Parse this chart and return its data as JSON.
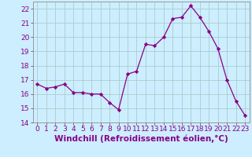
{
  "x": [
    0,
    1,
    2,
    3,
    4,
    5,
    6,
    7,
    8,
    9,
    10,
    11,
    12,
    13,
    14,
    15,
    16,
    17,
    18,
    19,
    20,
    21,
    22,
    23
  ],
  "y": [
    16.7,
    16.4,
    16.5,
    16.7,
    16.1,
    16.1,
    16.0,
    16.0,
    15.4,
    14.9,
    17.4,
    17.6,
    19.5,
    19.4,
    20.0,
    21.3,
    21.4,
    22.2,
    21.4,
    20.4,
    19.2,
    17.0,
    15.5,
    14.5
  ],
  "line_color": "#880088",
  "marker": "D",
  "marker_size": 2.2,
  "background_color": "#cceeff",
  "grid_color": "#aacccc",
  "xlabel": "Windchill (Refroidissement éolien,°C)",
  "xlim": [
    -0.5,
    23.5
  ],
  "ylim": [
    14,
    22.5
  ],
  "yticks": [
    14,
    15,
    16,
    17,
    18,
    19,
    20,
    21,
    22
  ],
  "xticks": [
    0,
    1,
    2,
    3,
    4,
    5,
    6,
    7,
    8,
    9,
    10,
    11,
    12,
    13,
    14,
    15,
    16,
    17,
    18,
    19,
    20,
    21,
    22,
    23
  ],
  "tick_fontsize": 6.5,
  "xlabel_fontsize": 7.5,
  "label_color": "#880088"
}
